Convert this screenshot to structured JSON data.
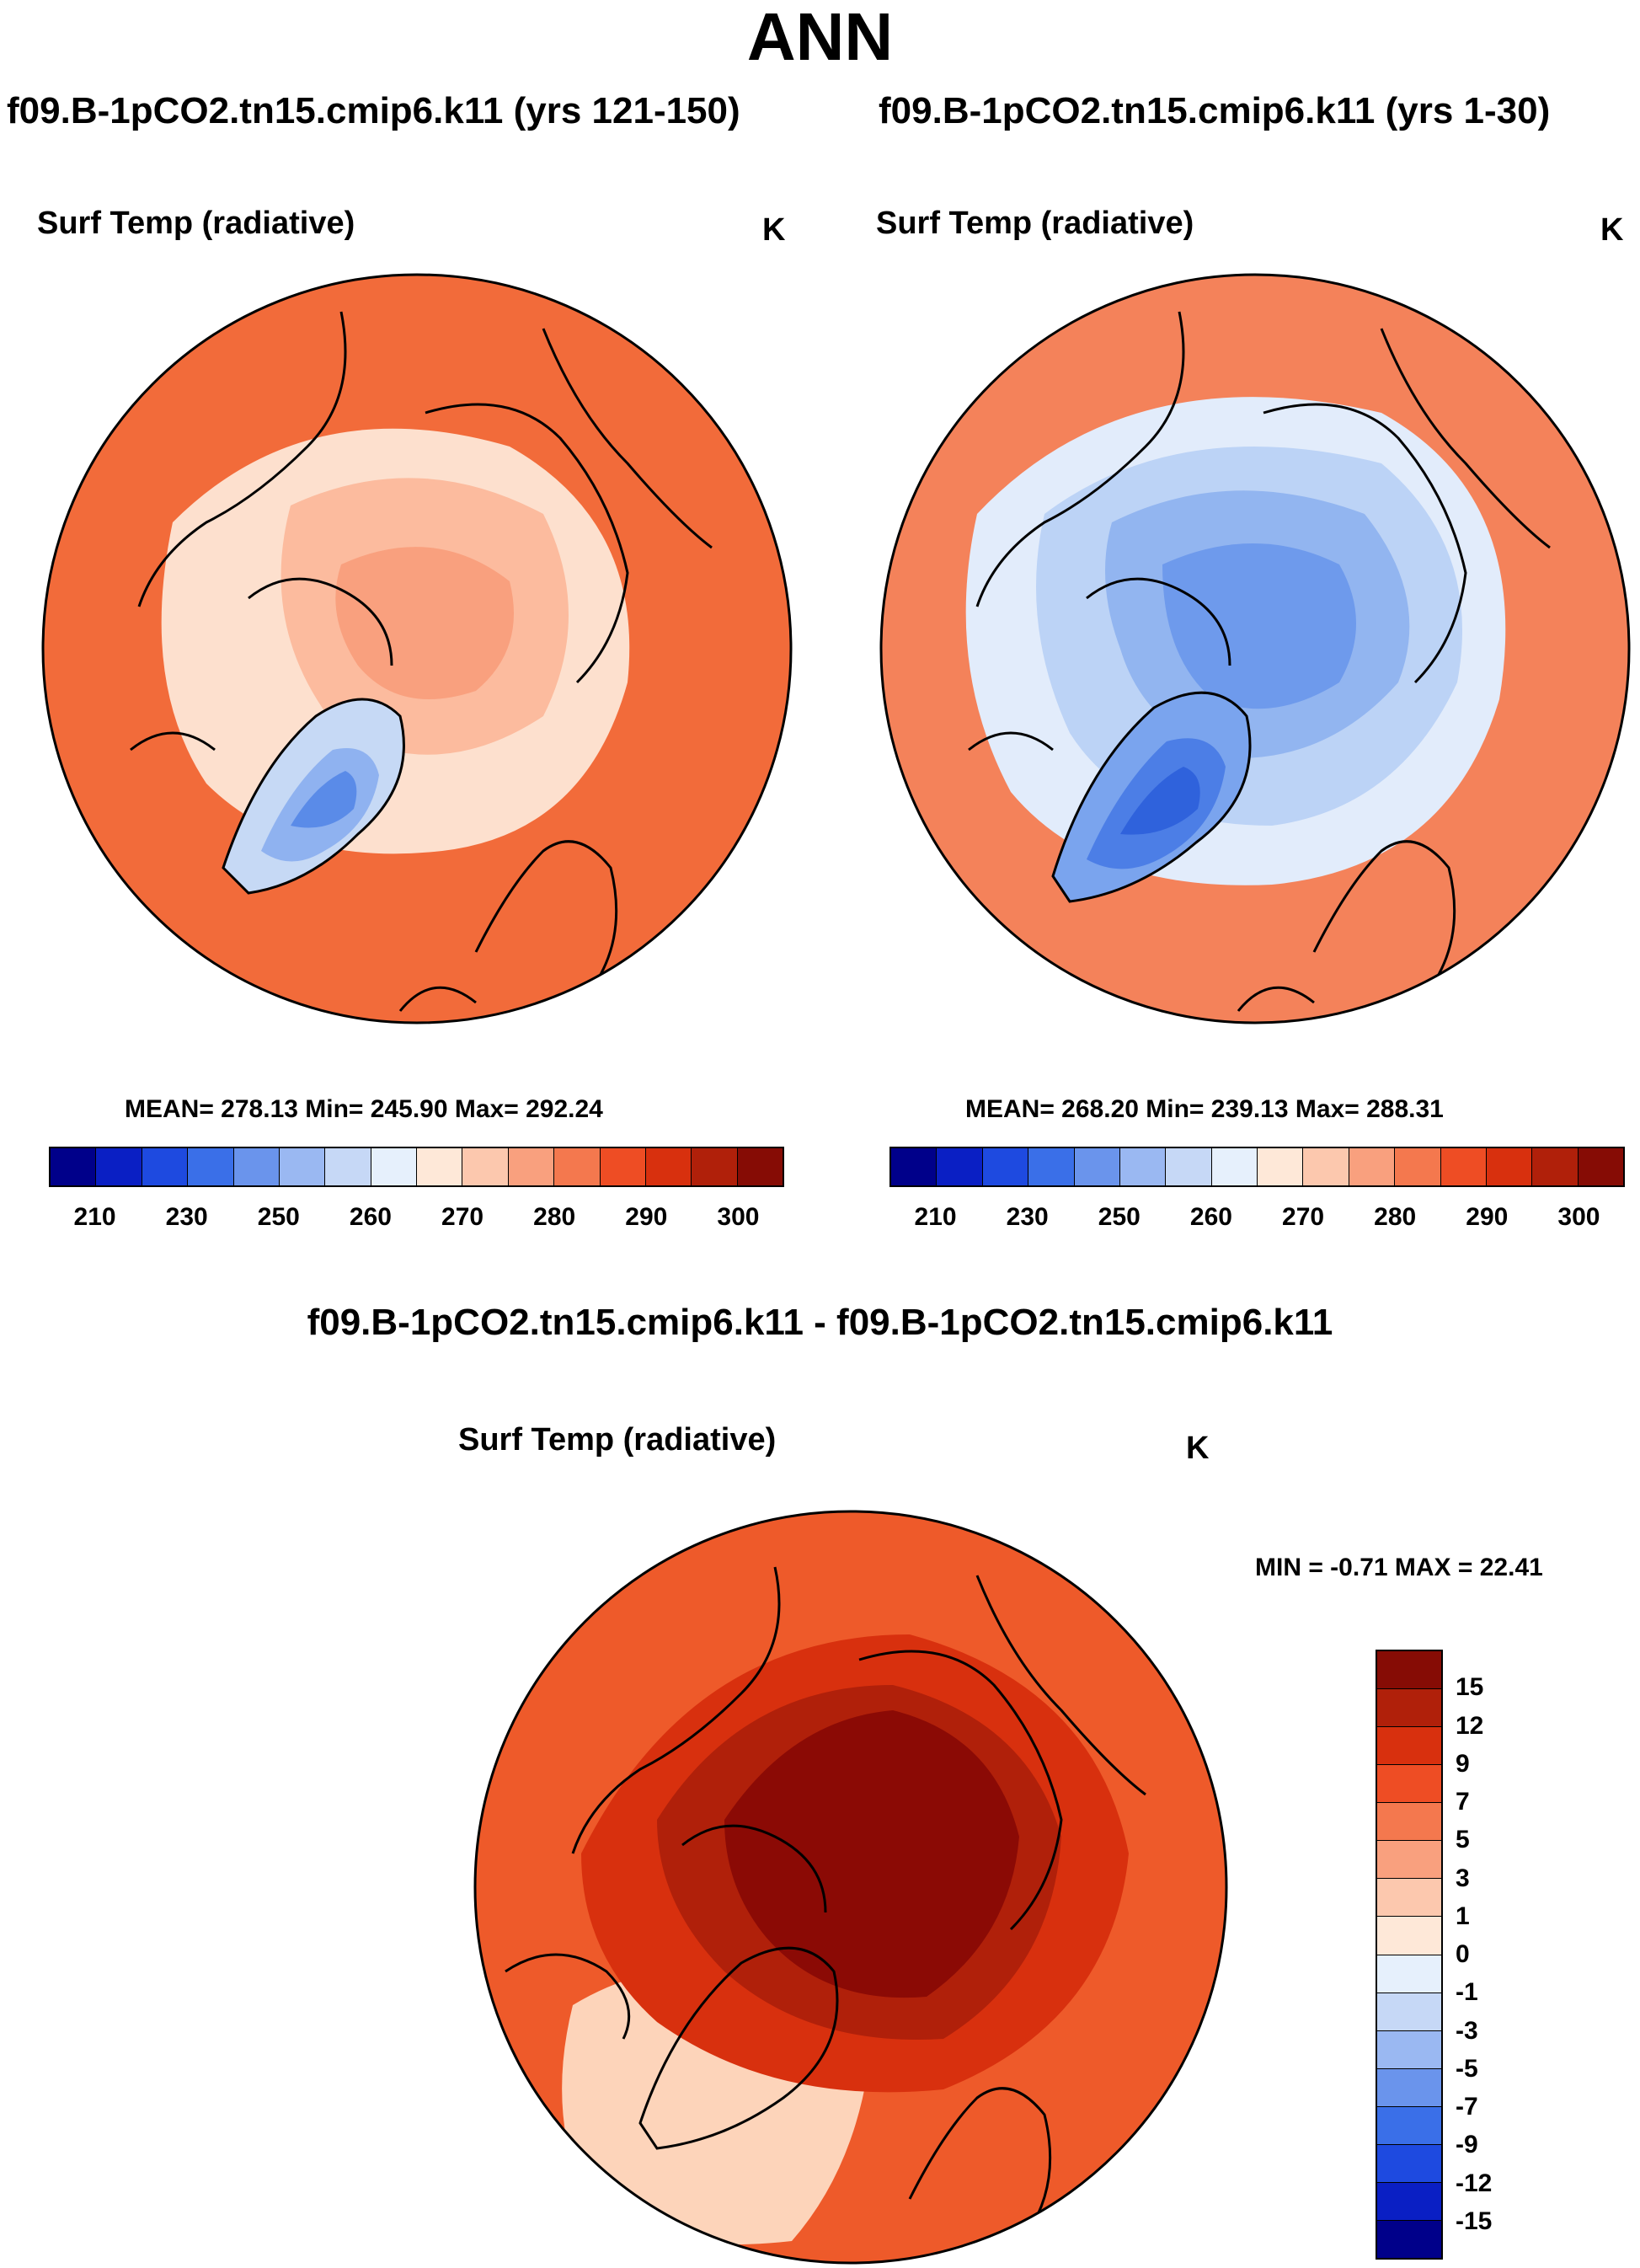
{
  "title": "ANN",
  "panels": [
    {
      "case_label": "f09.B-1pCO2.tn15.cmip6.k11 (yrs 121-150)",
      "variable": "Surf Temp (radiative)",
      "units": "K",
      "stats": "MEAN= 278.13  Min= 245.90  Max= 292.24",
      "ocean_color": "#F26B3A",
      "ice_colors": [
        "#FDE0CE",
        "#FCBB9E",
        "#F9A07E"
      ],
      "greenland_colors": [
        "#C6D9F5",
        "#8FB2F0",
        "#5A8BE8"
      ]
    },
    {
      "case_label": "f09.B-1pCO2.tn15.cmip6.k11 (yrs 1-30)",
      "variable": "Surf Temp (radiative)",
      "units": "K",
      "stats": "MEAN= 268.20  Min= 239.13  Max= 288.31",
      "ocean_color": "#F4825A",
      "ice_colors": [
        "#E2ECFB",
        "#BCD3F6",
        "#92B5F0",
        "#6E9AEC"
      ],
      "greenland_colors": [
        "#7AA4EE",
        "#4C7EE6",
        "#2F62DC"
      ]
    }
  ],
  "abs_colorbar": {
    "ticks": [
      "210",
      "230",
      "250",
      "260",
      "270",
      "280",
      "290",
      "300"
    ],
    "colors": [
      "#00008A",
      "#0A1FC4",
      "#1E4AE0",
      "#3A6FE8",
      "#6A94EC",
      "#9AB8F2",
      "#C6D8F6",
      "#E6F0FC",
      "#FEE8D8",
      "#FCC8AE",
      "#F9A07E",
      "#F4784E",
      "#EE4D24",
      "#D8300E",
      "#B0200A",
      "#860C05"
    ]
  },
  "diff_panel": {
    "title": "f09.B-1pCO2.tn15.cmip6.k11 - f09.B-1pCO2.tn15.cmip6.k11",
    "variable": "Surf Temp (radiative)",
    "units": "K",
    "minmax": "MIN =  -0.71 MAX =  22.41",
    "ocean_color": "#EE5A2A",
    "arctic_colors": [
      "#D8300E",
      "#B0200A",
      "#8B0A05"
    ]
  },
  "diff_colorbar": {
    "ticks": [
      "15",
      "12",
      "9",
      "7",
      "5",
      "3",
      "1",
      "0",
      "-1",
      "-3",
      "-5",
      "-7",
      "-9",
      "-12",
      "-15"
    ],
    "colors": [
      "#860C05",
      "#B0200A",
      "#D8300E",
      "#EE4D24",
      "#F4784E",
      "#F9A07E",
      "#FCC8AE",
      "#FEE8D8",
      "#E6F0FC",
      "#C6D8F6",
      "#9AB8F2",
      "#6A94EC",
      "#3A6FE8",
      "#1E4AE0",
      "#0A1FC4",
      "#00008A"
    ]
  }
}
